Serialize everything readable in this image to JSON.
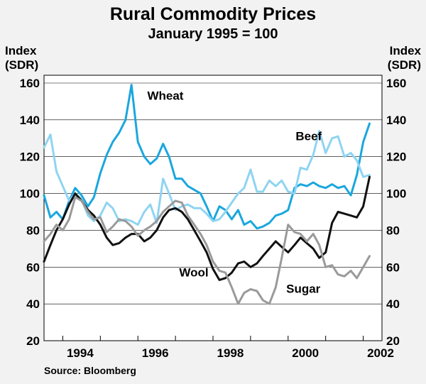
{
  "chart_data": {
    "type": "line",
    "title": "Rural Commodity Prices",
    "subtitle": "January 1995 = 100",
    "ylabel_left": [
      "Index",
      "(SDR)"
    ],
    "ylabel_right": [
      "Index",
      "(SDR)"
    ],
    "ylim": [
      20,
      160
    ],
    "yticks": [
      20,
      40,
      60,
      80,
      100,
      120,
      140,
      160
    ],
    "xlim": [
      1993.5,
      2002.5
    ],
    "xticks": [
      {
        "value": 1994,
        "label": "1994"
      },
      {
        "value": 1996,
        "label": "1996"
      },
      {
        "value": 1998,
        "label": "1998"
      },
      {
        "value": 2000,
        "label": "2000"
      },
      {
        "value": 2002,
        "label": "2002"
      }
    ],
    "source": "Source: Bloomberg",
    "series": [
      {
        "name": "Wheat",
        "color": "#1aa7de",
        "width": 3,
        "points": [
          [
            1993.5,
            99
          ],
          [
            1993.67,
            87
          ],
          [
            1993.83,
            90
          ],
          [
            1994.0,
            86
          ],
          [
            1994.17,
            96
          ],
          [
            1994.33,
            103
          ],
          [
            1994.5,
            99
          ],
          [
            1994.67,
            93
          ],
          [
            1994.83,
            98
          ],
          [
            1995.0,
            111
          ],
          [
            1995.17,
            121
          ],
          [
            1995.33,
            128
          ],
          [
            1995.5,
            133
          ],
          [
            1995.67,
            140
          ],
          [
            1995.83,
            159
          ],
          [
            1996.0,
            128
          ],
          [
            1996.17,
            120
          ],
          [
            1996.33,
            116
          ],
          [
            1996.5,
            119
          ],
          [
            1996.67,
            127
          ],
          [
            1996.83,
            120
          ],
          [
            1997.0,
            108
          ],
          [
            1997.17,
            108
          ],
          [
            1997.33,
            104
          ],
          [
            1997.5,
            102
          ],
          [
            1997.67,
            100
          ],
          [
            1997.83,
            93
          ],
          [
            1998.0,
            85
          ],
          [
            1998.17,
            93
          ],
          [
            1998.33,
            91
          ],
          [
            1998.5,
            86
          ],
          [
            1998.67,
            91
          ],
          [
            1998.83,
            83
          ],
          [
            1999.0,
            85
          ],
          [
            1999.17,
            81
          ],
          [
            1999.33,
            82
          ],
          [
            1999.5,
            84
          ],
          [
            1999.67,
            88
          ],
          [
            1999.83,
            89
          ],
          [
            2000.0,
            91
          ],
          [
            2000.17,
            103
          ],
          [
            2000.33,
            105
          ],
          [
            2000.5,
            104
          ],
          [
            2000.67,
            106
          ],
          [
            2000.83,
            104
          ],
          [
            2001.0,
            103
          ],
          [
            2001.17,
            105
          ],
          [
            2001.33,
            103
          ],
          [
            2001.5,
            104
          ],
          [
            2001.67,
            99
          ],
          [
            2001.83,
            110
          ],
          [
            2002.0,
            128
          ],
          [
            2002.17,
            138
          ]
        ]
      },
      {
        "name": "Beef",
        "color": "#8fd4f2",
        "width": 3,
        "points": [
          [
            1993.5,
            125
          ],
          [
            1993.67,
            132
          ],
          [
            1993.83,
            112
          ],
          [
            1994.0,
            104
          ],
          [
            1994.17,
            96
          ],
          [
            1994.33,
            100
          ],
          [
            1994.5,
            97
          ],
          [
            1994.67,
            88
          ],
          [
            1994.83,
            85
          ],
          [
            1995.0,
            88
          ],
          [
            1995.17,
            95
          ],
          [
            1995.33,
            92
          ],
          [
            1995.5,
            85
          ],
          [
            1995.67,
            86
          ],
          [
            1995.83,
            85
          ],
          [
            1996.0,
            83
          ],
          [
            1996.17,
            90
          ],
          [
            1996.33,
            94
          ],
          [
            1996.5,
            84
          ],
          [
            1996.67,
            108
          ],
          [
            1996.83,
            100
          ],
          [
            1997.0,
            91
          ],
          [
            1997.17,
            93
          ],
          [
            1997.33,
            94
          ],
          [
            1997.5,
            92
          ],
          [
            1997.67,
            92
          ],
          [
            1997.83,
            89
          ],
          [
            1998.0,
            85
          ],
          [
            1998.17,
            86
          ],
          [
            1998.33,
            90
          ],
          [
            1998.5,
            95
          ],
          [
            1998.67,
            100
          ],
          [
            1998.83,
            103
          ],
          [
            1999.0,
            113
          ],
          [
            1999.17,
            101
          ],
          [
            1999.33,
            101
          ],
          [
            1999.5,
            107
          ],
          [
            1999.67,
            104
          ],
          [
            1999.83,
            107
          ],
          [
            2000.0,
            101
          ],
          [
            2000.17,
            100
          ],
          [
            2000.33,
            114
          ],
          [
            2000.5,
            113
          ],
          [
            2000.67,
            121
          ],
          [
            2000.83,
            134
          ],
          [
            2001.0,
            122
          ],
          [
            2001.17,
            130
          ],
          [
            2001.33,
            131
          ],
          [
            2001.5,
            120
          ],
          [
            2001.67,
            122
          ],
          [
            2001.83,
            118
          ],
          [
            2002.0,
            109
          ],
          [
            2002.17,
            110
          ]
        ]
      },
      {
        "name": "Wool",
        "color": "#111111",
        "width": 3,
        "points": [
          [
            1993.5,
            63
          ],
          [
            1993.67,
            72
          ],
          [
            1993.83,
            80
          ],
          [
            1994.0,
            86
          ],
          [
            1994.17,
            94
          ],
          [
            1994.33,
            100
          ],
          [
            1994.5,
            96
          ],
          [
            1994.67,
            91
          ],
          [
            1994.83,
            88
          ],
          [
            1995.0,
            83
          ],
          [
            1995.17,
            76
          ],
          [
            1995.33,
            72
          ],
          [
            1995.5,
            73
          ],
          [
            1995.67,
            76
          ],
          [
            1995.83,
            78
          ],
          [
            1996.0,
            78
          ],
          [
            1996.17,
            74
          ],
          [
            1996.33,
            76
          ],
          [
            1996.5,
            80
          ],
          [
            1996.67,
            87
          ],
          [
            1996.83,
            91
          ],
          [
            1997.0,
            92
          ],
          [
            1997.17,
            90
          ],
          [
            1997.33,
            86
          ],
          [
            1997.5,
            80
          ],
          [
            1997.67,
            74
          ],
          [
            1997.83,
            68
          ],
          [
            1998.0,
            59
          ],
          [
            1998.17,
            53
          ],
          [
            1998.33,
            54
          ],
          [
            1998.5,
            57
          ],
          [
            1998.67,
            62
          ],
          [
            1998.83,
            63
          ],
          [
            1999.0,
            60
          ],
          [
            1999.17,
            62
          ],
          [
            1999.33,
            66
          ],
          [
            1999.5,
            70
          ],
          [
            1999.67,
            74
          ],
          [
            1999.83,
            71
          ],
          [
            2000.0,
            68
          ],
          [
            2000.17,
            72
          ],
          [
            2000.33,
            76
          ],
          [
            2000.5,
            73
          ],
          [
            2000.67,
            70
          ],
          [
            2000.83,
            65
          ],
          [
            2001.0,
            68
          ],
          [
            2001.17,
            84
          ],
          [
            2001.33,
            90
          ],
          [
            2001.5,
            89
          ],
          [
            2001.67,
            88
          ],
          [
            2001.83,
            87
          ],
          [
            2002.0,
            93
          ],
          [
            2002.17,
            109
          ]
        ]
      },
      {
        "name": "Sugar",
        "color": "#9a9a9a",
        "width": 3,
        "points": [
          [
            1993.5,
            74
          ],
          [
            1993.67,
            78
          ],
          [
            1993.83,
            83
          ],
          [
            1994.0,
            80
          ],
          [
            1994.17,
            86
          ],
          [
            1994.33,
            98
          ],
          [
            1994.5,
            96
          ],
          [
            1994.67,
            90
          ],
          [
            1994.83,
            86
          ],
          [
            1995.0,
            87
          ],
          [
            1995.17,
            79
          ],
          [
            1995.33,
            82
          ],
          [
            1995.5,
            86
          ],
          [
            1995.67,
            85
          ],
          [
            1995.83,
            82
          ],
          [
            1996.0,
            77
          ],
          [
            1996.17,
            80
          ],
          [
            1996.33,
            82
          ],
          [
            1996.5,
            85
          ],
          [
            1996.67,
            90
          ],
          [
            1996.83,
            93
          ],
          [
            1997.0,
            96
          ],
          [
            1997.17,
            95
          ],
          [
            1997.33,
            88
          ],
          [
            1997.5,
            83
          ],
          [
            1997.67,
            78
          ],
          [
            1997.83,
            72
          ],
          [
            1998.0,
            63
          ],
          [
            1998.17,
            58
          ],
          [
            1998.33,
            57
          ],
          [
            1998.5,
            49
          ],
          [
            1998.67,
            40
          ],
          [
            1998.83,
            46
          ],
          [
            1999.0,
            48
          ],
          [
            1999.17,
            47
          ],
          [
            1999.33,
            42
          ],
          [
            1999.5,
            40
          ],
          [
            1999.67,
            49
          ],
          [
            1999.83,
            65
          ],
          [
            2000.0,
            83
          ],
          [
            2000.17,
            79
          ],
          [
            2000.33,
            78
          ],
          [
            2000.5,
            74
          ],
          [
            2000.67,
            78
          ],
          [
            2000.83,
            72
          ],
          [
            2001.0,
            60
          ],
          [
            2001.17,
            61
          ],
          [
            2001.33,
            56
          ],
          [
            2001.5,
            55
          ],
          [
            2001.67,
            58
          ],
          [
            2001.83,
            54
          ],
          [
            2002.0,
            60
          ],
          [
            2002.17,
            66
          ]
        ]
      }
    ],
    "annotations": [
      {
        "series": "Wheat",
        "text": "Wheat",
        "x": 1996.25,
        "y": 151
      },
      {
        "series": "Beef",
        "text": "Beef",
        "x": 2000.2,
        "y": 129
      },
      {
        "series": "Wool",
        "text": "Wool",
        "x": 1997.1,
        "y": 55
      },
      {
        "series": "Sugar",
        "text": "Sugar",
        "x": 1999.95,
        "y": 46
      }
    ]
  }
}
